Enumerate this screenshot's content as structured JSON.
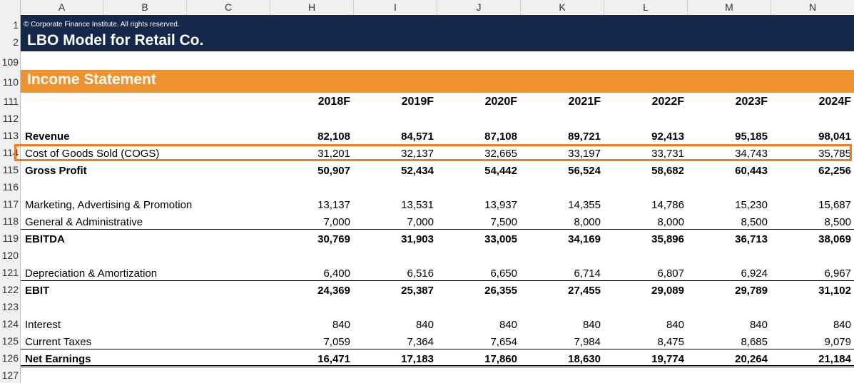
{
  "columns": [
    "A",
    "B",
    "C",
    "H",
    "I",
    "J",
    "K",
    "L",
    "M",
    "N"
  ],
  "rows": [
    "1",
    "2",
    "109",
    "110",
    "111",
    "112",
    "113",
    "114",
    "115",
    "116",
    "117",
    "118",
    "119",
    "120",
    "121",
    "122",
    "123",
    "124",
    "125",
    "126",
    "127"
  ],
  "header": {
    "copyright": "© Corporate Finance Institute. All rights reserved.",
    "title": "LBO Model for Retail Co."
  },
  "section": {
    "title": "Income Statement"
  },
  "years": [
    "2018F",
    "2019F",
    "2020F",
    "2021F",
    "2022F",
    "2023F",
    "2024F"
  ],
  "lines": [
    {
      "label": "Revenue",
      "bold": true,
      "values": [
        "82,108",
        "84,571",
        "87,108",
        "89,721",
        "92,413",
        "95,185",
        "98,041"
      ]
    },
    {
      "label": "Cost of Goods Sold (COGS)",
      "bold": false,
      "values": [
        "31,201",
        "32,137",
        "32,665",
        "33,197",
        "33,731",
        "34,743",
        "35,785"
      ]
    },
    {
      "label": "Gross Profit",
      "bold": true,
      "values": [
        "50,907",
        "52,434",
        "54,442",
        "56,524",
        "58,682",
        "60,443",
        "62,256"
      ]
    },
    {
      "label": "Marketing, Advertising & Promotion",
      "bold": false,
      "values": [
        "13,137",
        "13,531",
        "13,937",
        "14,355",
        "14,786",
        "15,230",
        "15,687"
      ]
    },
    {
      "label": "General & Administrative",
      "bold": false,
      "values": [
        "7,000",
        "7,000",
        "7,500",
        "8,000",
        "8,000",
        "8,500",
        "8,500"
      ]
    },
    {
      "label": "EBITDA",
      "bold": true,
      "values": [
        "30,769",
        "31,903",
        "33,005",
        "34,169",
        "35,896",
        "36,713",
        "38,069"
      ]
    },
    {
      "label": "Depreciation & Amortization",
      "bold": false,
      "values": [
        "6,400",
        "6,516",
        "6,650",
        "6,714",
        "6,807",
        "6,924",
        "6,967"
      ]
    },
    {
      "label": "EBIT",
      "bold": true,
      "values": [
        "24,369",
        "25,387",
        "26,355",
        "27,455",
        "29,089",
        "29,789",
        "31,102"
      ]
    },
    {
      "label": "Interest",
      "bold": false,
      "values": [
        "840",
        "840",
        "840",
        "840",
        "840",
        "840",
        "840"
      ]
    },
    {
      "label": "Current Taxes",
      "bold": false,
      "values": [
        "7,059",
        "7,364",
        "7,654",
        "7,984",
        "8,475",
        "8,685",
        "9,079"
      ]
    },
    {
      "label": "Net Earnings",
      "bold": true,
      "values": [
        "16,471",
        "17,183",
        "17,860",
        "18,630",
        "19,774",
        "20,264",
        "21,184"
      ]
    }
  ],
  "colors": {
    "navy": "#14284b",
    "orange": "#ef9230",
    "highlight": "#f07c1d"
  }
}
